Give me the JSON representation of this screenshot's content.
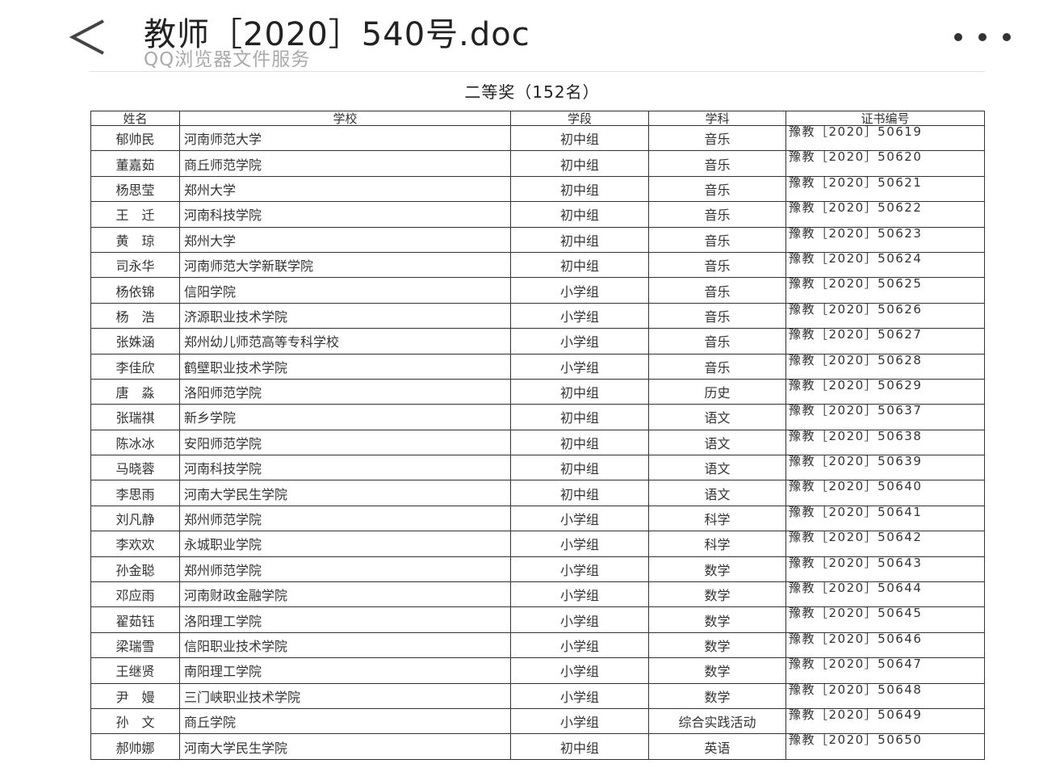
{
  "header": {
    "title": "教师［2020］540号.doc",
    "subtitle": "QQ浏览器文件服务"
  },
  "table": {
    "title": "二等奖（152名）",
    "columns": [
      "姓名",
      "学校",
      "学段",
      "学科",
      "证书编号"
    ],
    "rows": [
      [
        "郁帅民",
        "河南师范大学",
        "初中组",
        "音乐",
        "豫教［2020］50619"
      ],
      [
        "董嘉茹",
        "商丘师范学院",
        "初中组",
        "音乐",
        "豫教［2020］50620"
      ],
      [
        "杨思莹",
        "郑州大学",
        "初中组",
        "音乐",
        "豫教［2020］50621"
      ],
      [
        "王　迁",
        "河南科技学院",
        "初中组",
        "音乐",
        "豫教［2020］50622"
      ],
      [
        "黄　琼",
        "郑州大学",
        "初中组",
        "音乐",
        "豫教［2020］50623"
      ],
      [
        "司永华",
        "河南师范大学新联学院",
        "初中组",
        "音乐",
        "豫教［2020］50624"
      ],
      [
        "杨依锦",
        "信阳学院",
        "小学组",
        "音乐",
        "豫教［2020］50625"
      ],
      [
        "杨　浩",
        "济源职业技术学院",
        "小学组",
        "音乐",
        "豫教［2020］50626"
      ],
      [
        "张姝涵",
        "郑州幼儿师范高等专科学校",
        "小学组",
        "音乐",
        "豫教［2020］50627"
      ],
      [
        "李佳欣",
        "鹤壁职业技术学院",
        "小学组",
        "音乐",
        "豫教［2020］50628"
      ],
      [
        "唐　淼",
        "洛阳师范学院",
        "初中组",
        "历史",
        "豫教［2020］50629"
      ],
      [
        "张瑞祺",
        "新乡学院",
        "初中组",
        "语文",
        "豫教［2020］50637"
      ],
      [
        "陈冰冰",
        "安阳师范学院",
        "初中组",
        "语文",
        "豫教［2020］50638"
      ],
      [
        "马晓蓉",
        "河南科技学院",
        "初中组",
        "语文",
        "豫教［2020］50639"
      ],
      [
        "李思雨",
        "河南大学民生学院",
        "初中组",
        "语文",
        "豫教［2020］50640"
      ],
      [
        "刘凡静",
        "郑州师范学院",
        "小学组",
        "科学",
        "豫教［2020］50641"
      ],
      [
        "李欢欢",
        "永城职业学院",
        "小学组",
        "科学",
        "豫教［2020］50642"
      ],
      [
        "孙金聪",
        "郑州师范学院",
        "小学组",
        "数学",
        "豫教［2020］50643"
      ],
      [
        "邓应雨",
        "河南财政金融学院",
        "小学组",
        "数学",
        "豫教［2020］50644"
      ],
      [
        "翟茹钰",
        "洛阳理工学院",
        "小学组",
        "数学",
        "豫教［2020］50645"
      ],
      [
        "梁瑞雪",
        "信阳职业技术学院",
        "小学组",
        "数学",
        "豫教［2020］50646"
      ],
      [
        "王继贤",
        "南阳理工学院",
        "小学组",
        "数学",
        "豫教［2020］50647"
      ],
      [
        "尹　嫚",
        "三门峡职业技术学院",
        "小学组",
        "数学",
        "豫教［2020］50648"
      ],
      [
        "孙　文",
        "商丘学院",
        "小学组",
        "综合实践活动",
        "豫教［2020］50649"
      ],
      [
        "郝帅娜",
        "河南大学民生学院",
        "初中组",
        "英语",
        "豫教［2020］50650"
      ]
    ]
  }
}
